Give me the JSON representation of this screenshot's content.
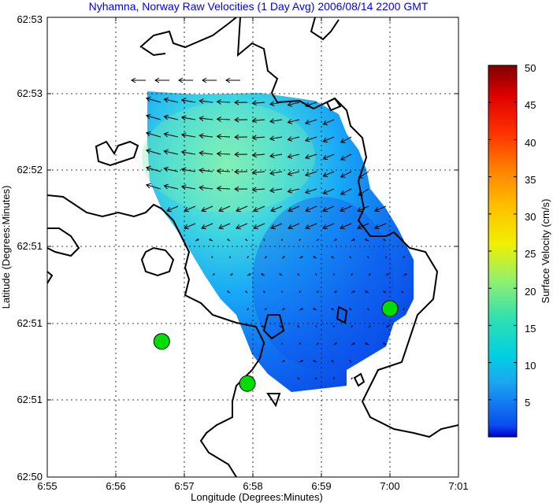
{
  "chart_data": {
    "type": "heatmap",
    "title": "Nyhamna, Norway Raw Velocities (1 Day Avg) 2006/08/14 2200 GMT",
    "xlabel": "Longitude (Degrees:Minutes)",
    "ylabel": "Latitude (Degrees:Minutes)",
    "x_ticks": [
      "6:55",
      "6:56",
      "6:57",
      "6:58",
      "6:59",
      "7:00",
      "7:01"
    ],
    "y_ticks": [
      "62:50",
      "62:51",
      "62:51",
      "62:51",
      "62:52",
      "62:53",
      "62:53"
    ],
    "colorbar": {
      "label": "Surface Velocity (cm/s)",
      "range": [
        0,
        50
      ],
      "ticks": [
        "5",
        "10",
        "15",
        "20",
        "25",
        "30",
        "35",
        "40",
        "45",
        "50"
      ],
      "colormap": "jet"
    },
    "grid": true,
    "sites": [
      {
        "lon_min": 56.67,
        "lat_min": 50.885
      },
      {
        "lon_min": 57.92,
        "lat_min": 50.61
      },
      {
        "lon_min": 60.0,
        "lat_min": 51.1
      }
    ],
    "colors": {
      "land_outline": "#000000",
      "site_marker": "#00dd00",
      "title": "#0000ee"
    }
  }
}
